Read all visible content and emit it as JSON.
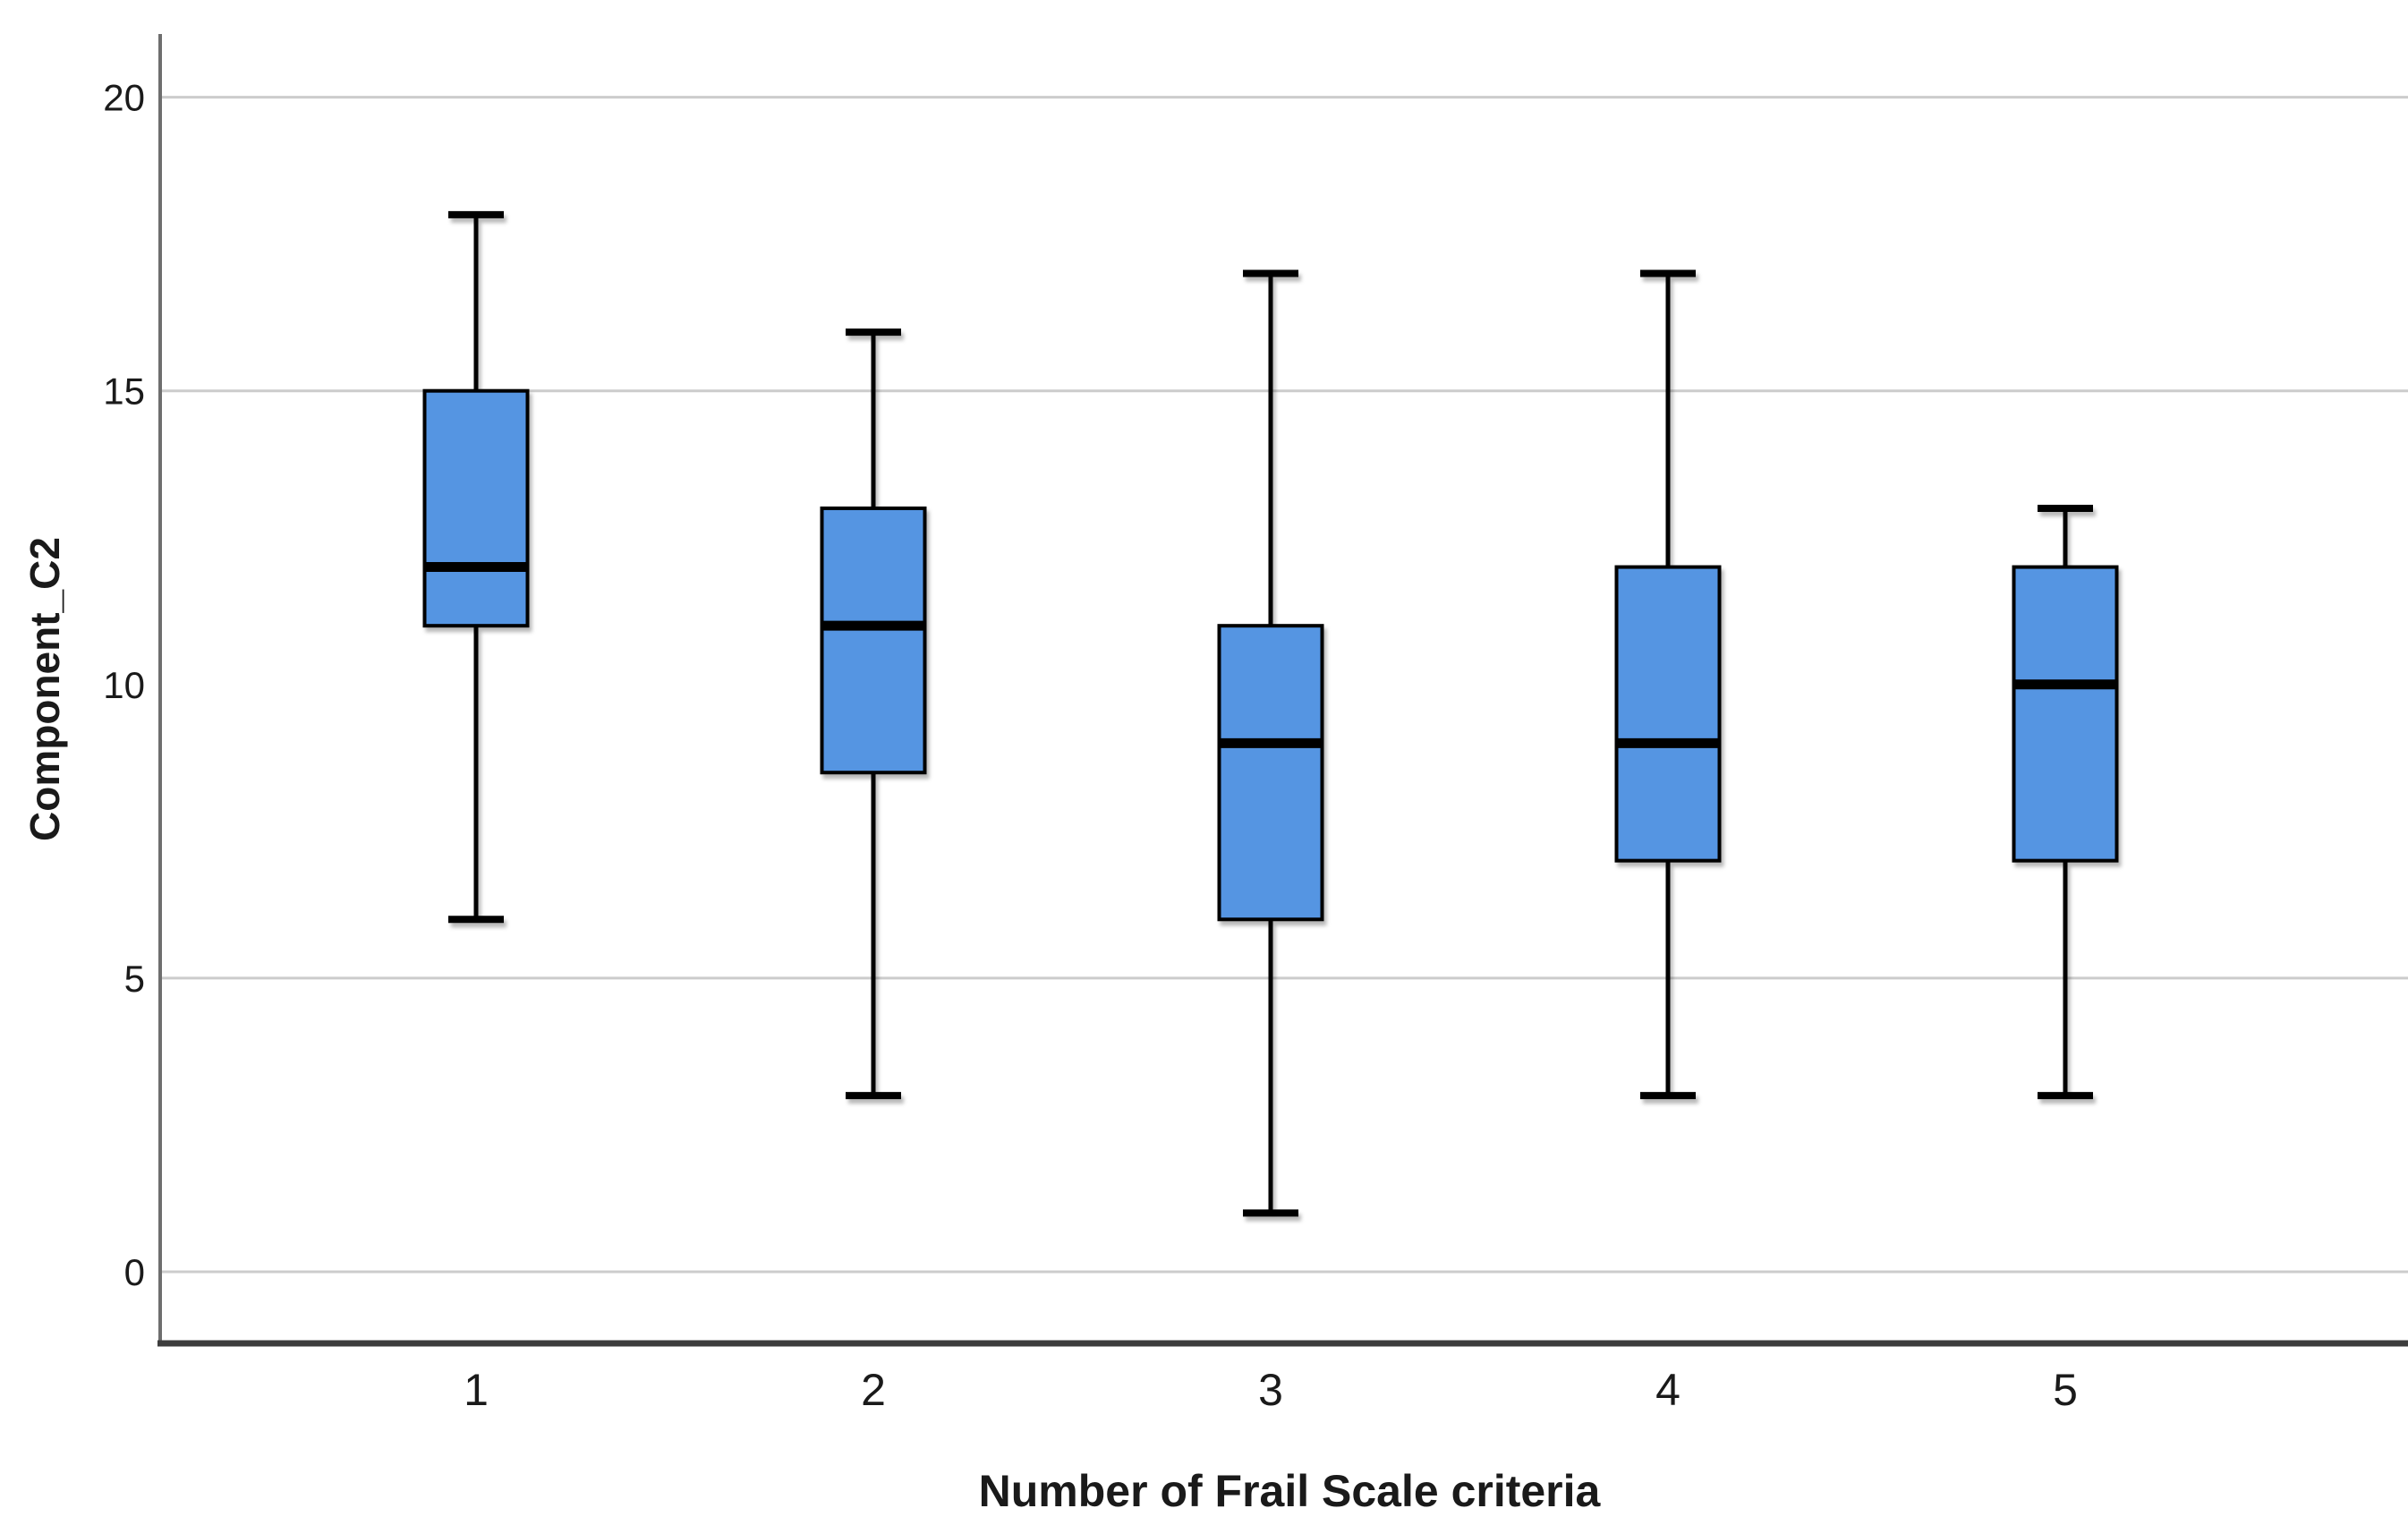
{
  "figure": {
    "background": "#ffffff"
  },
  "chart_data": {
    "type": "boxplot",
    "title": "",
    "xlabel": "Number of Frail Scale criteria",
    "ylabel": "Component_C2",
    "categories": [
      "1",
      "2",
      "3",
      "4",
      "5"
    ],
    "series": [
      {
        "category": "1",
        "whisker_low": 6,
        "q1": 11,
        "median": 12,
        "q3": 15,
        "whisker_high": 18
      },
      {
        "category": "2",
        "whisker_low": 3,
        "q1": 8.5,
        "median": 11,
        "q3": 13,
        "whisker_high": 16
      },
      {
        "category": "3",
        "whisker_low": 1,
        "q1": 6,
        "median": 9,
        "q3": 11,
        "whisker_high": 17
      },
      {
        "category": "4",
        "whisker_low": 3,
        "q1": 7,
        "median": 9,
        "q3": 12,
        "whisker_high": 17
      },
      {
        "category": "5",
        "whisker_low": 3,
        "q1": 7,
        "median": 10,
        "q3": 12,
        "whisker_high": 13
      }
    ],
    "y_ticks": [
      0,
      5,
      10,
      15,
      20
    ],
    "ylim": [
      -1.2,
      21.1
    ],
    "reference_line_y": 10,
    "grid": true,
    "legend_position": "none",
    "colors": {
      "box_fill": "#5595e2",
      "box_stroke": "#000000",
      "median_line": "#000000",
      "whisker": "#000000",
      "gridline": "#cccccc",
      "reference_line": "#262626",
      "y_axis_line": "#6e6e6e",
      "x_axis_line": "#3d3d3d",
      "text": "#1a1a1a"
    }
  }
}
